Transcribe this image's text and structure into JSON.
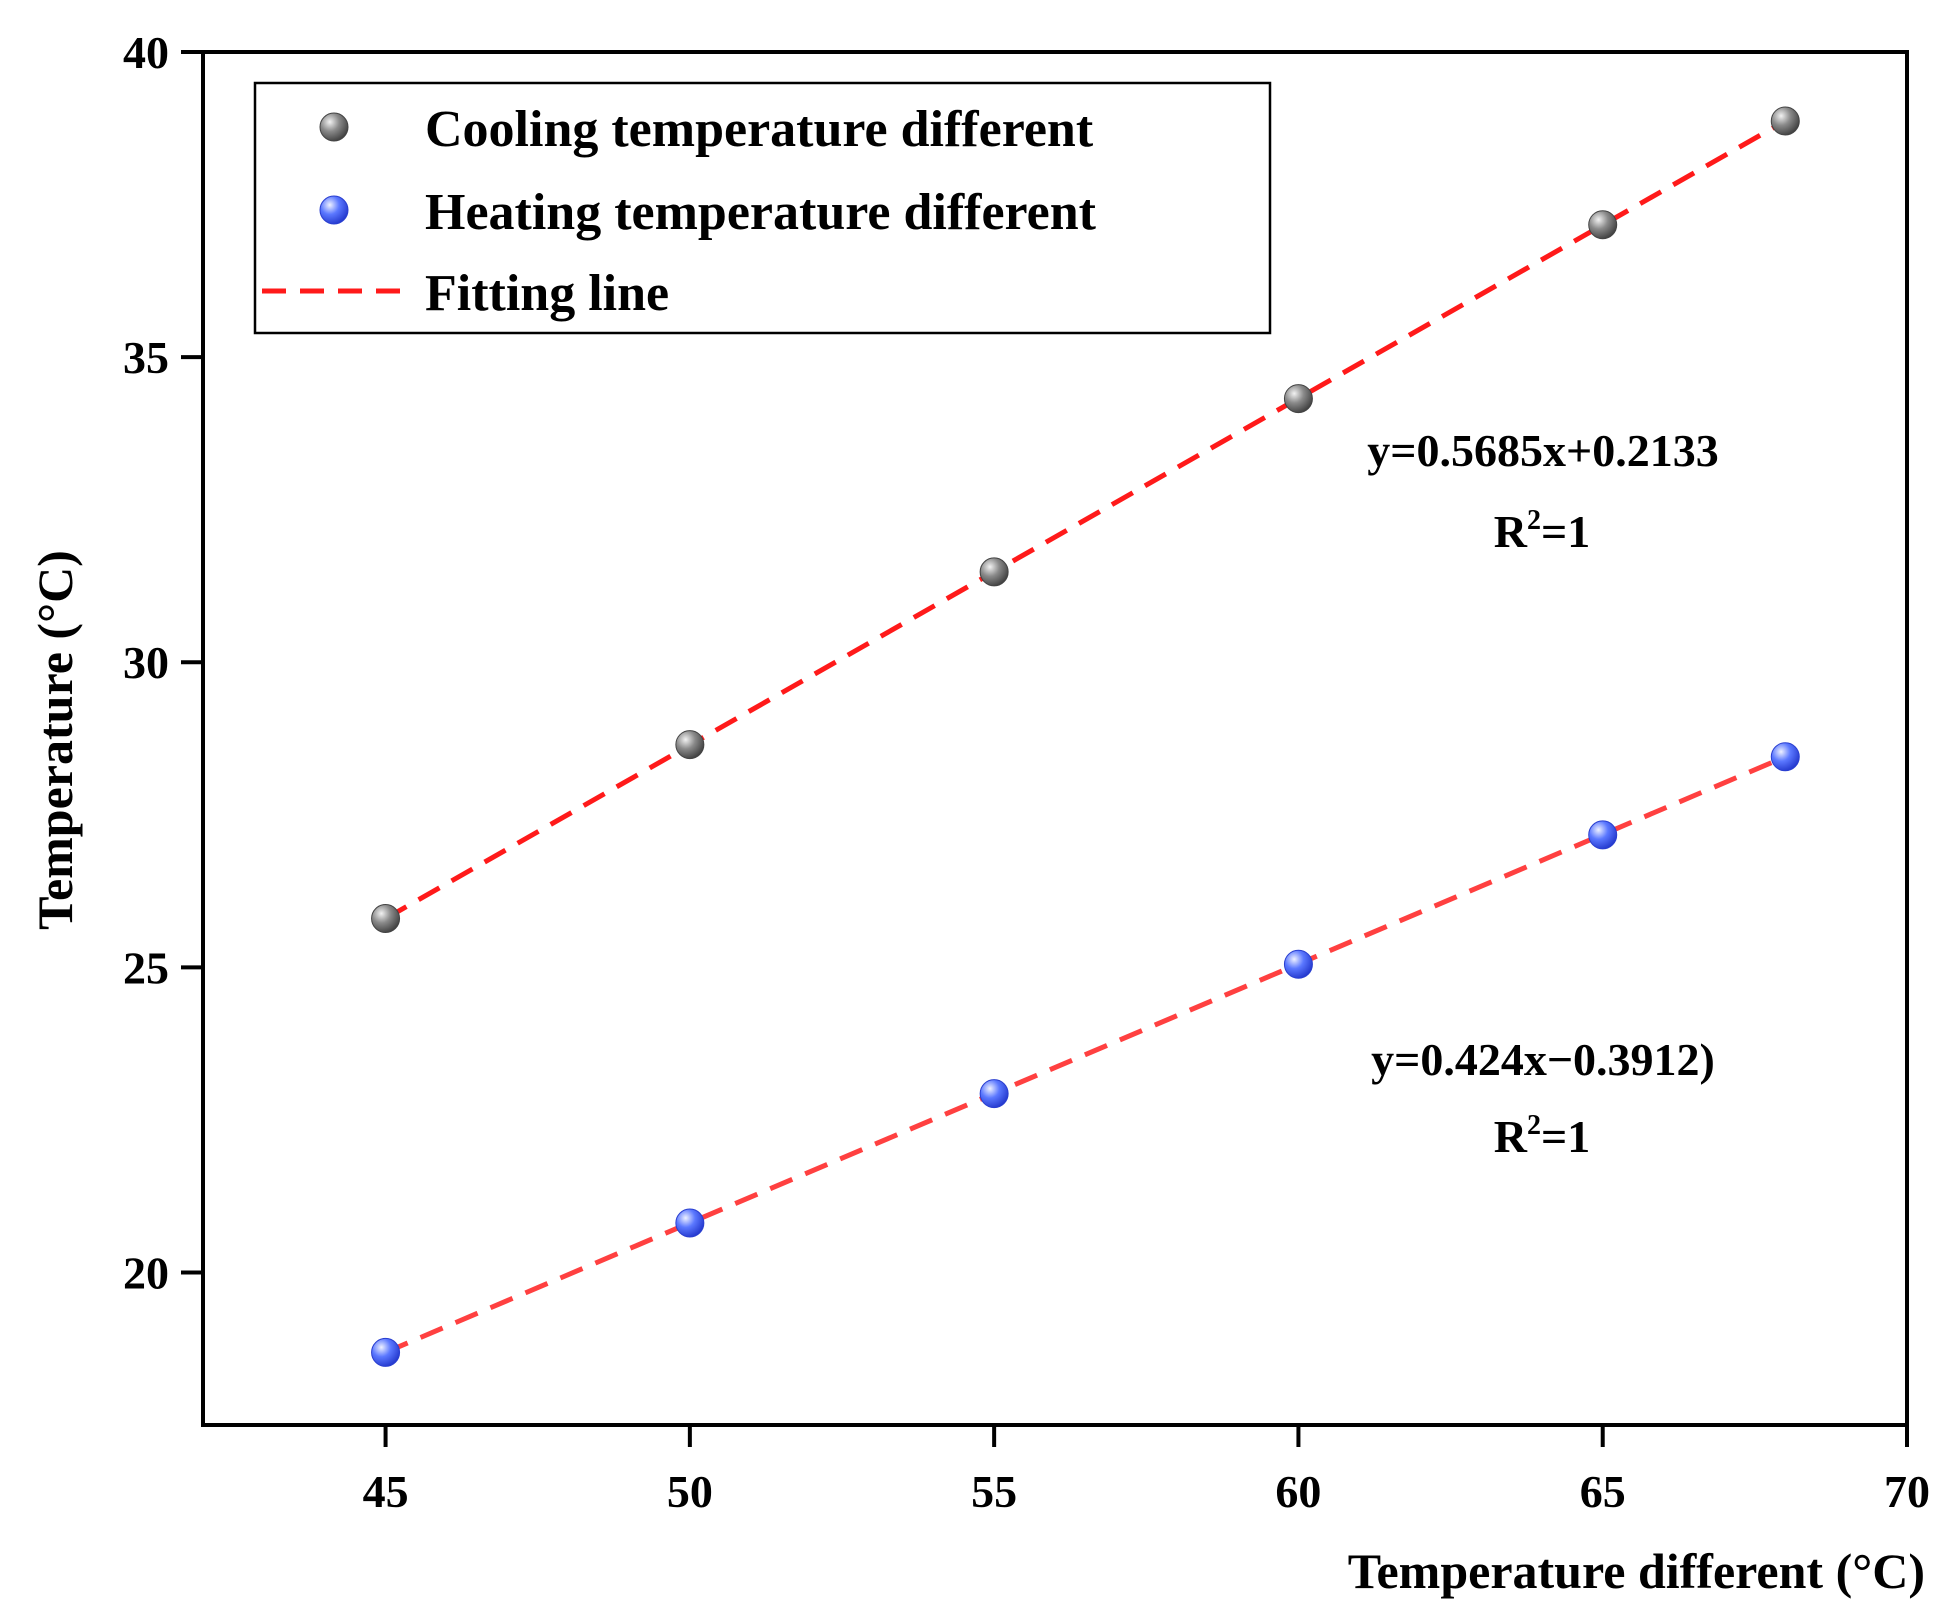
{
  "chart_data": {
    "type": "scatter",
    "xlabel": "Temperature different (°C)",
    "ylabel": "Temperature (°C)",
    "xlim": [
      42,
      70
    ],
    "ylim": [
      17.5,
      40
    ],
    "xticks": [
      45,
      50,
      55,
      60,
      65,
      70
    ],
    "yticks": [
      20,
      25,
      30,
      35,
      40
    ],
    "x": [
      45,
      50,
      55,
      60,
      65,
      68
    ],
    "series": [
      {
        "name": "Cooling temperature different",
        "color": "#707070",
        "values": [
          25.8,
          28.65,
          31.48,
          34.32,
          37.17,
          38.87
        ]
      },
      {
        "name": "Heating temperature different",
        "color": "#4d6cff",
        "values": [
          18.69,
          20.81,
          22.93,
          25.05,
          27.17,
          28.45
        ]
      }
    ],
    "fit_lines": [
      {
        "series": "Cooling temperature different",
        "x": [
          45,
          68
        ],
        "y": [
          25.8,
          38.87
        ],
        "color": "#ff1a1a"
      },
      {
        "series": "Heating temperature different",
        "x": [
          45,
          68
        ],
        "y": [
          18.69,
          28.45
        ],
        "color": "#ff4040"
      }
    ],
    "legend": {
      "position": "top-left",
      "entries": [
        "Cooling temperature different",
        "Heating temperature different",
        "Fitting line"
      ]
    },
    "annotations": [
      {
        "equation": "y=0.5685x+0.2133",
        "r2_base": "R",
        "r2_sup": "2",
        "r2_tail": "=1"
      },
      {
        "equation": "y=0.424x−0.3912)",
        "r2_base": "R",
        "r2_sup": "2",
        "r2_tail": "=1"
      }
    ]
  }
}
